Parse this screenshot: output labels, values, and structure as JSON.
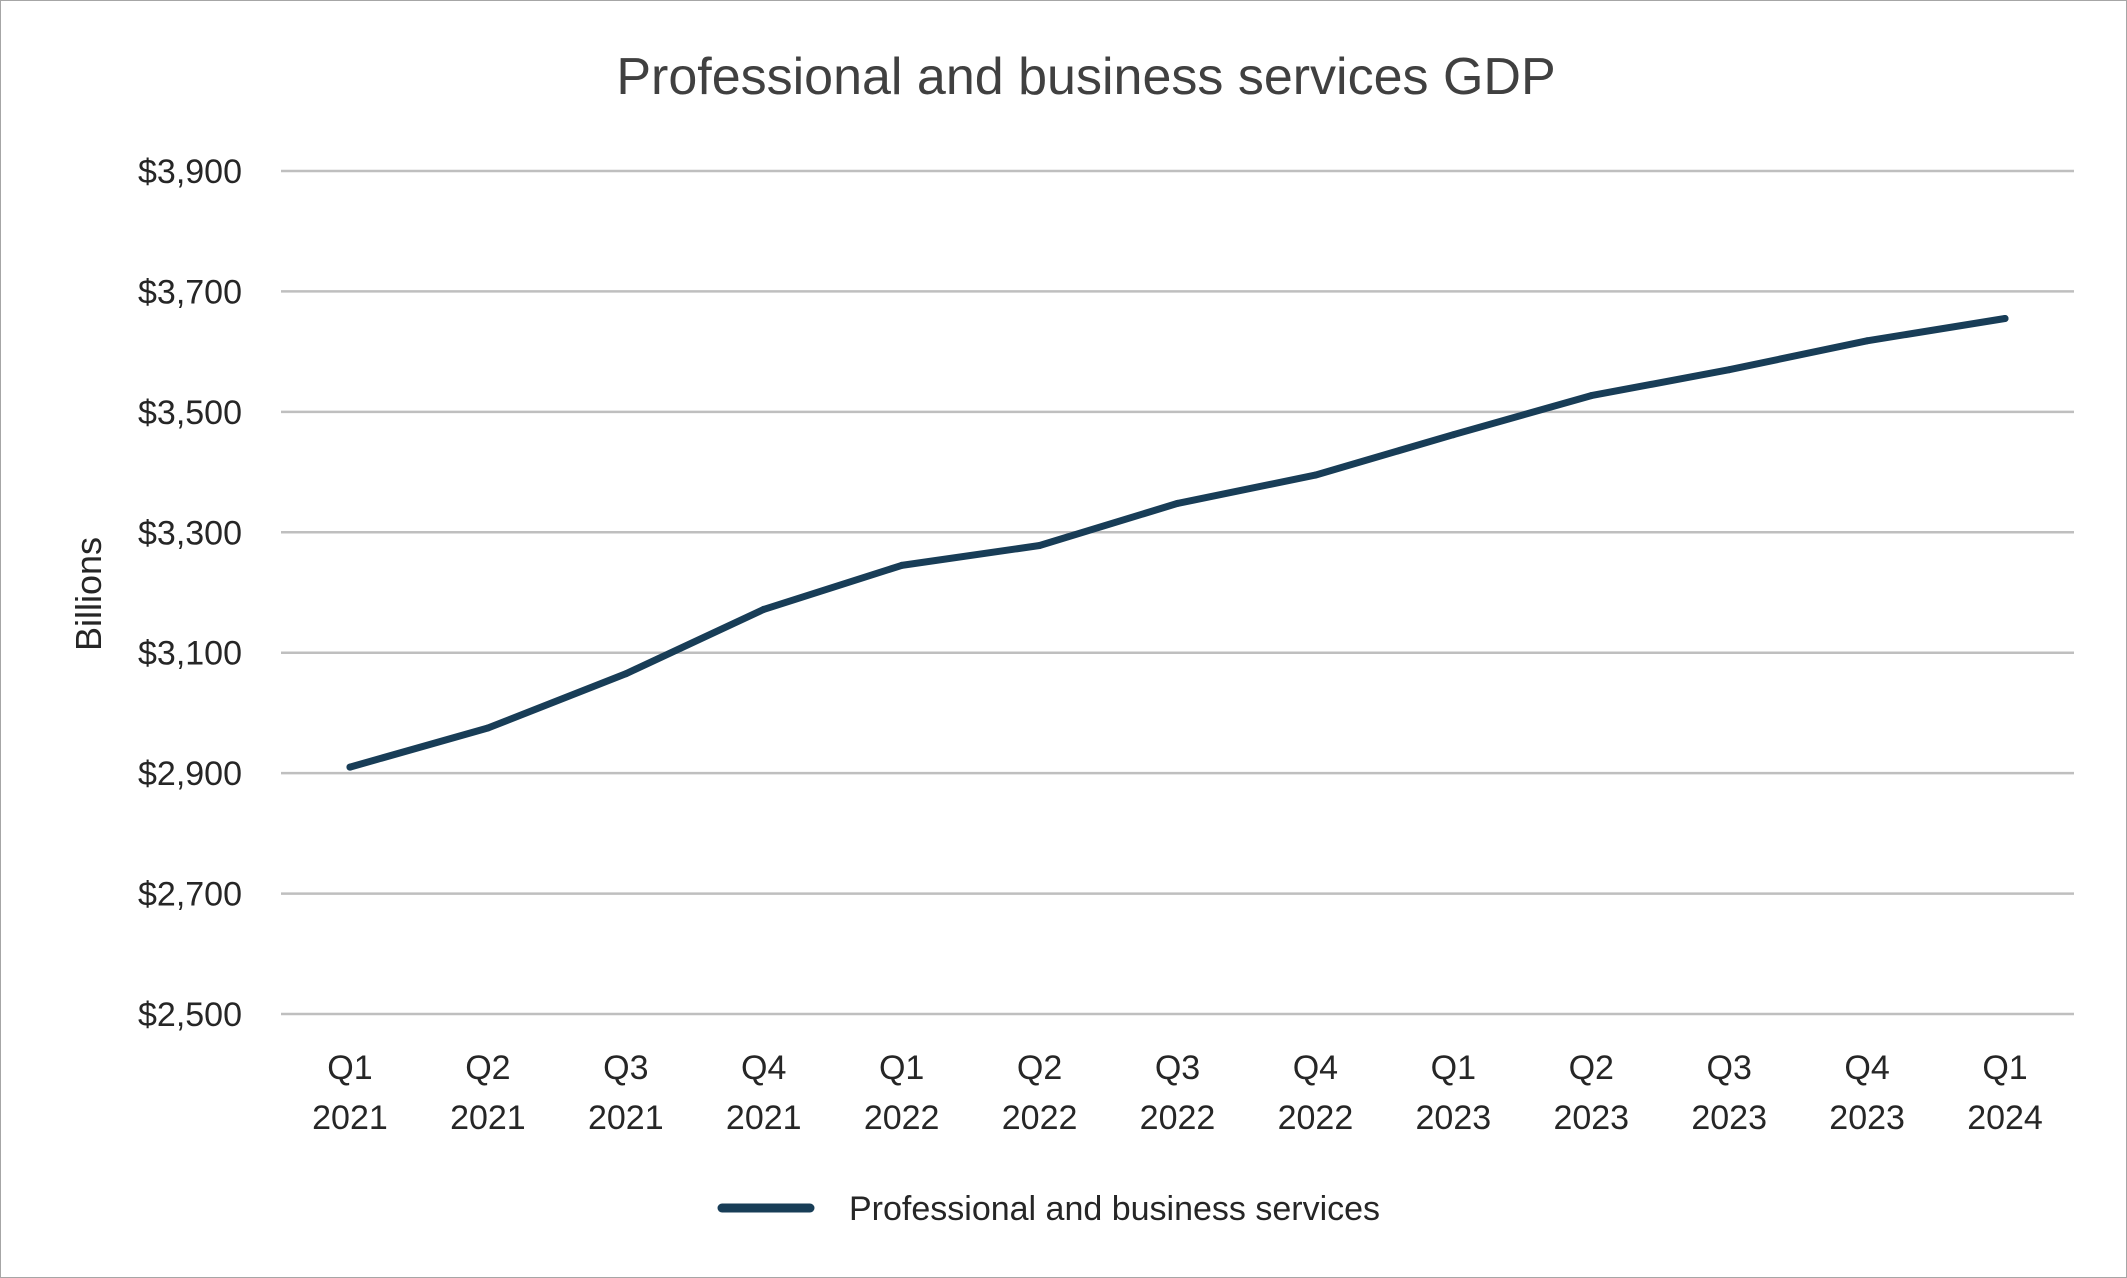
{
  "chart_data": {
    "type": "line",
    "title": "Professional and business services GDP",
    "xlabel": "",
    "ylabel": "Billions",
    "ylim": [
      2500,
      3900
    ],
    "y_ticks": [
      2500,
      2700,
      2900,
      3100,
      3300,
      3500,
      3700,
      3900
    ],
    "y_tick_labels": [
      "$2,500",
      "$2,700",
      "$2,900",
      "$3,100",
      "$3,300",
      "$3,500",
      "$3,700",
      "$3,900"
    ],
    "categories": [
      [
        "Q1",
        "2021"
      ],
      [
        "Q2",
        "2021"
      ],
      [
        "Q3",
        "2021"
      ],
      [
        "Q4",
        "2021"
      ],
      [
        "Q1",
        "2022"
      ],
      [
        "Q2",
        "2022"
      ],
      [
        "Q3",
        "2022"
      ],
      [
        "Q4",
        "2022"
      ],
      [
        "Q1",
        "2023"
      ],
      [
        "Q2",
        "2023"
      ],
      [
        "Q3",
        "2023"
      ],
      [
        "Q4",
        "2023"
      ],
      [
        "Q1",
        "2024"
      ]
    ],
    "series": [
      {
        "name": "Professional and business services",
        "color": "#183d57",
        "values": [
          2910,
          2975,
          3065,
          3172,
          3245,
          3278,
          3348,
          3395,
          3462,
          3527,
          3570,
          3618,
          3655
        ]
      }
    ],
    "grid": true,
    "legend_position": "bottom"
  }
}
